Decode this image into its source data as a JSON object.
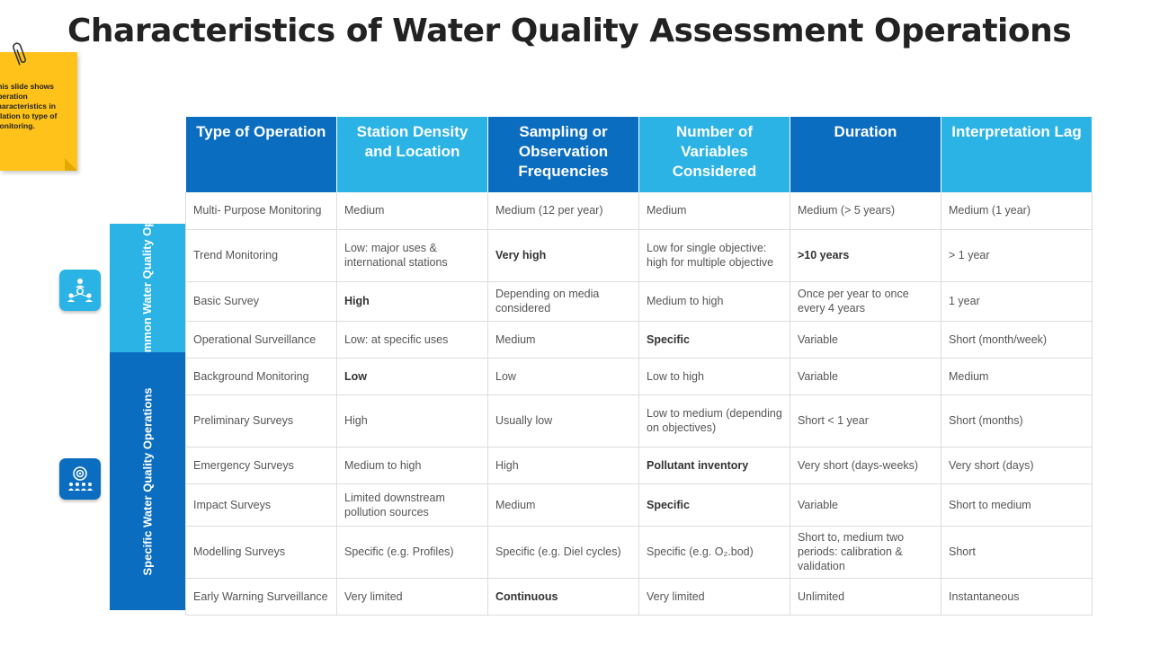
{
  "title": "Characteristics of Water Quality Assessment Operations",
  "sticky_note": "This slide shows operation characteristics in relation to type of monitoring.",
  "groups": {
    "common": "Other Common Water Quality Operations",
    "specific": "Specific Water Quality Operations"
  },
  "icons": {
    "common": "team-network-icon",
    "specific": "target-people-icon"
  },
  "colors": {
    "dark_blue": "#0b6dbf",
    "light_blue": "#2bb3e6",
    "note_yellow": "#ffc21a"
  },
  "headers": [
    "Type of Operation",
    "Station Density and Location",
    "Sampling or Observation Frequencies",
    "Number of Variables Considered",
    "Duration",
    "Interpretation Lag"
  ],
  "rows": [
    [
      "Multi- Purpose Monitoring",
      "Medium",
      "Medium (12 per year)",
      "Medium",
      "Medium (> 5 years)",
      "Medium (1 year)"
    ],
    [
      "Trend Monitoring",
      "Low: major uses & international stations",
      "Very high",
      "Low for single objective: high for multiple objective",
      ">10 years",
      "> 1 year"
    ],
    [
      "Basic Survey",
      "High",
      "Depending on media considered",
      "Medium to high",
      "Once per year to once every 4 years",
      "1 year"
    ],
    [
      "Operational Surveillance",
      "Low: at specific uses",
      "Medium",
      "Specific",
      "Variable",
      "Short (month/week)"
    ],
    [
      "Background Monitoring",
      "Low",
      "Low",
      "Low to high",
      "Variable",
      "Medium"
    ],
    [
      "Preliminary Surveys",
      "High",
      "Usually low",
      "Low to medium (depending on objectives)",
      "Short < 1 year",
      "Short (months)"
    ],
    [
      "Emergency  Surveys",
      "Medium to high",
      "High",
      "Pollutant inventory",
      "Very short  (days-weeks)",
      "Very short (days)"
    ],
    [
      "Impact Surveys",
      "Limited downstream pollution sources",
      "Medium",
      "Specific",
      "Variable",
      "Short to medium"
    ],
    [
      "Modelling Surveys",
      "Specific (e.g. Profiles)",
      "Specific (e.g. Diel cycles)",
      "Specific (e.g. O₂.bod)",
      "Short to, medium two periods: calibration & validation",
      "Short"
    ],
    [
      "Early Warning Surveillance",
      "Very limited",
      "Continuous",
      "Very limited",
      "Unlimited",
      "Instantaneous"
    ]
  ]
}
